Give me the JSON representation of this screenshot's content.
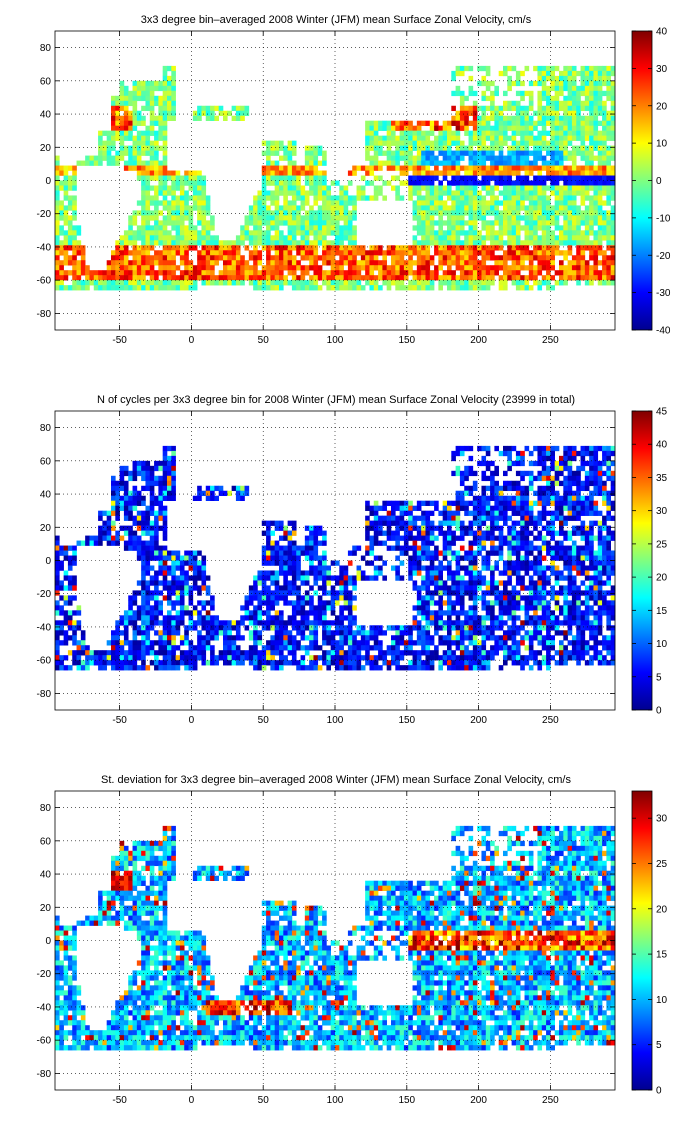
{
  "figure": {
    "panels": [
      {
        "id": "zonal-velocity-mean",
        "title": "3x3 degree bin–averaged 2008 Winter (JFM) mean Surface Zonal Velocity, cm/s",
        "colorbar": {
          "min": -40,
          "max": 40,
          "ticks": [
            40,
            30,
            20,
            10,
            0,
            -10,
            -20,
            -30,
            -40
          ]
        }
      },
      {
        "id": "cycle-count",
        "title": "N of cycles per 3x3 degree bin for 2008 Winter (JFM) mean Surface Zonal Velocity (23999 in total)",
        "colorbar": {
          "min": 0,
          "max": 45,
          "ticks": [
            45,
            40,
            35,
            30,
            25,
            20,
            15,
            10,
            5,
            0
          ]
        }
      },
      {
        "id": "zonal-velocity-std",
        "title": "St. deviation for 3x3 degree bin–averaged 2008 Winter (JFM) mean Surface Zonal Velocity, cm/s",
        "colorbar": {
          "min": 0,
          "max": 33,
          "ticks": [
            30,
            25,
            20,
            15,
            10,
            5,
            0
          ]
        }
      }
    ],
    "axes": {
      "xlim": [
        -95,
        295
      ],
      "ylim": [
        -90,
        90
      ],
      "xticks": [
        -50,
        0,
        50,
        100,
        150,
        200,
        250
      ],
      "yticks": [
        80,
        60,
        40,
        20,
        0,
        -20,
        -40,
        -60,
        -80
      ],
      "grid": "dotted"
    },
    "colormap": "jet"
  },
  "chart_data": [
    {
      "type": "heatmap",
      "title": "3x3 degree bin–averaged 2008 Winter (JFM) mean Surface Zonal Velocity, cm/s",
      "xlabel": "",
      "ylabel": "",
      "xlim": [
        -95,
        295
      ],
      "ylim": [
        -90,
        90
      ],
      "bin_size_deg": 3,
      "color_range": [
        -40,
        40
      ],
      "x_tick_labels": [
        "-50",
        "0",
        "50",
        "100",
        "150",
        "200",
        "250"
      ],
      "y_tick_labels": [
        "80",
        "60",
        "40",
        "20",
        "0",
        "-20",
        "-40",
        "-60",
        "-80"
      ],
      "colorbar_tick_labels": [
        "40",
        "30",
        "20",
        "10",
        "0",
        "-10",
        "-20",
        "-30",
        "-40"
      ],
      "features": [
        {
          "name": "equatorial westward band",
          "lat_range": [
            -3,
            3
          ],
          "lon_range": [
            150,
            290
          ],
          "value_range": [
            -40,
            -30
          ]
        },
        {
          "name": "north equatorial westward band",
          "lat_range": [
            9,
            18
          ],
          "lon_range": [
            160,
            260
          ],
          "value_range": [
            -30,
            -20
          ]
        },
        {
          "name": "Antarctic Circumpolar eastward band",
          "lat_range": [
            -60,
            -40
          ],
          "lon_range": [
            -95,
            295
          ],
          "value_range": [
            10,
            35
          ]
        },
        {
          "name": "Gulf Stream / Kuroshio eastward",
          "lat_range": [
            30,
            45
          ],
          "value_range": [
            15,
            40
          ]
        }
      ]
    },
    {
      "type": "heatmap",
      "title": "N of cycles per 3x3 degree bin for 2008 Winter (JFM) mean Surface Zonal Velocity (23999 in total)",
      "xlabel": "",
      "ylabel": "",
      "xlim": [
        -95,
        295
      ],
      "ylim": [
        -90,
        90
      ],
      "bin_size_deg": 3,
      "color_range": [
        0,
        45
      ],
      "total_cycles": 23999,
      "x_tick_labels": [
        "-50",
        "0",
        "50",
        "100",
        "150",
        "200",
        "250"
      ],
      "y_tick_labels": [
        "80",
        "60",
        "40",
        "20",
        "0",
        "-20",
        "-40",
        "-60",
        "-80"
      ],
      "colorbar_tick_labels": [
        "45",
        "40",
        "35",
        "30",
        "25",
        "20",
        "15",
        "10",
        "5",
        "0"
      ],
      "features": [
        {
          "name": "typical bins",
          "value_range": [
            1,
            10
          ]
        },
        {
          "name": "occasional high-count bins",
          "value_range": [
            25,
            45
          ]
        }
      ]
    },
    {
      "type": "heatmap",
      "title": "St. deviation for 3x3 degree bin–averaged 2008 Winter (JFM) mean Surface Zonal Velocity, cm/s",
      "xlabel": "",
      "ylabel": "",
      "xlim": [
        -95,
        295
      ],
      "ylim": [
        -90,
        90
      ],
      "bin_size_deg": 3,
      "color_range": [
        0,
        33
      ],
      "x_tick_labels": [
        "-50",
        "0",
        "50",
        "100",
        "150",
        "200",
        "250"
      ],
      "y_tick_labels": [
        "80",
        "60",
        "40",
        "20",
        "0",
        "-20",
        "-40",
        "-60",
        "-80"
      ],
      "colorbar_tick_labels": [
        "30",
        "25",
        "20",
        "15",
        "10",
        "5",
        "0"
      ],
      "features": [
        {
          "name": "equatorial high variability",
          "lat_range": [
            -6,
            6
          ],
          "lon_range": [
            150,
            290
          ],
          "value_range": [
            20,
            33
          ]
        },
        {
          "name": "Gulf Stream high variability",
          "lat_range": [
            30,
            42
          ],
          "lon_range": [
            -80,
            -40
          ],
          "value_range": [
            25,
            33
          ]
        },
        {
          "name": "Agulhas / ACC high variability",
          "lat_range": [
            -45,
            -35
          ],
          "lon_range": [
            10,
            70
          ],
          "value_range": [
            25,
            33
          ]
        },
        {
          "name": "background",
          "value_range": [
            5,
            15
          ]
        }
      ]
    }
  ]
}
